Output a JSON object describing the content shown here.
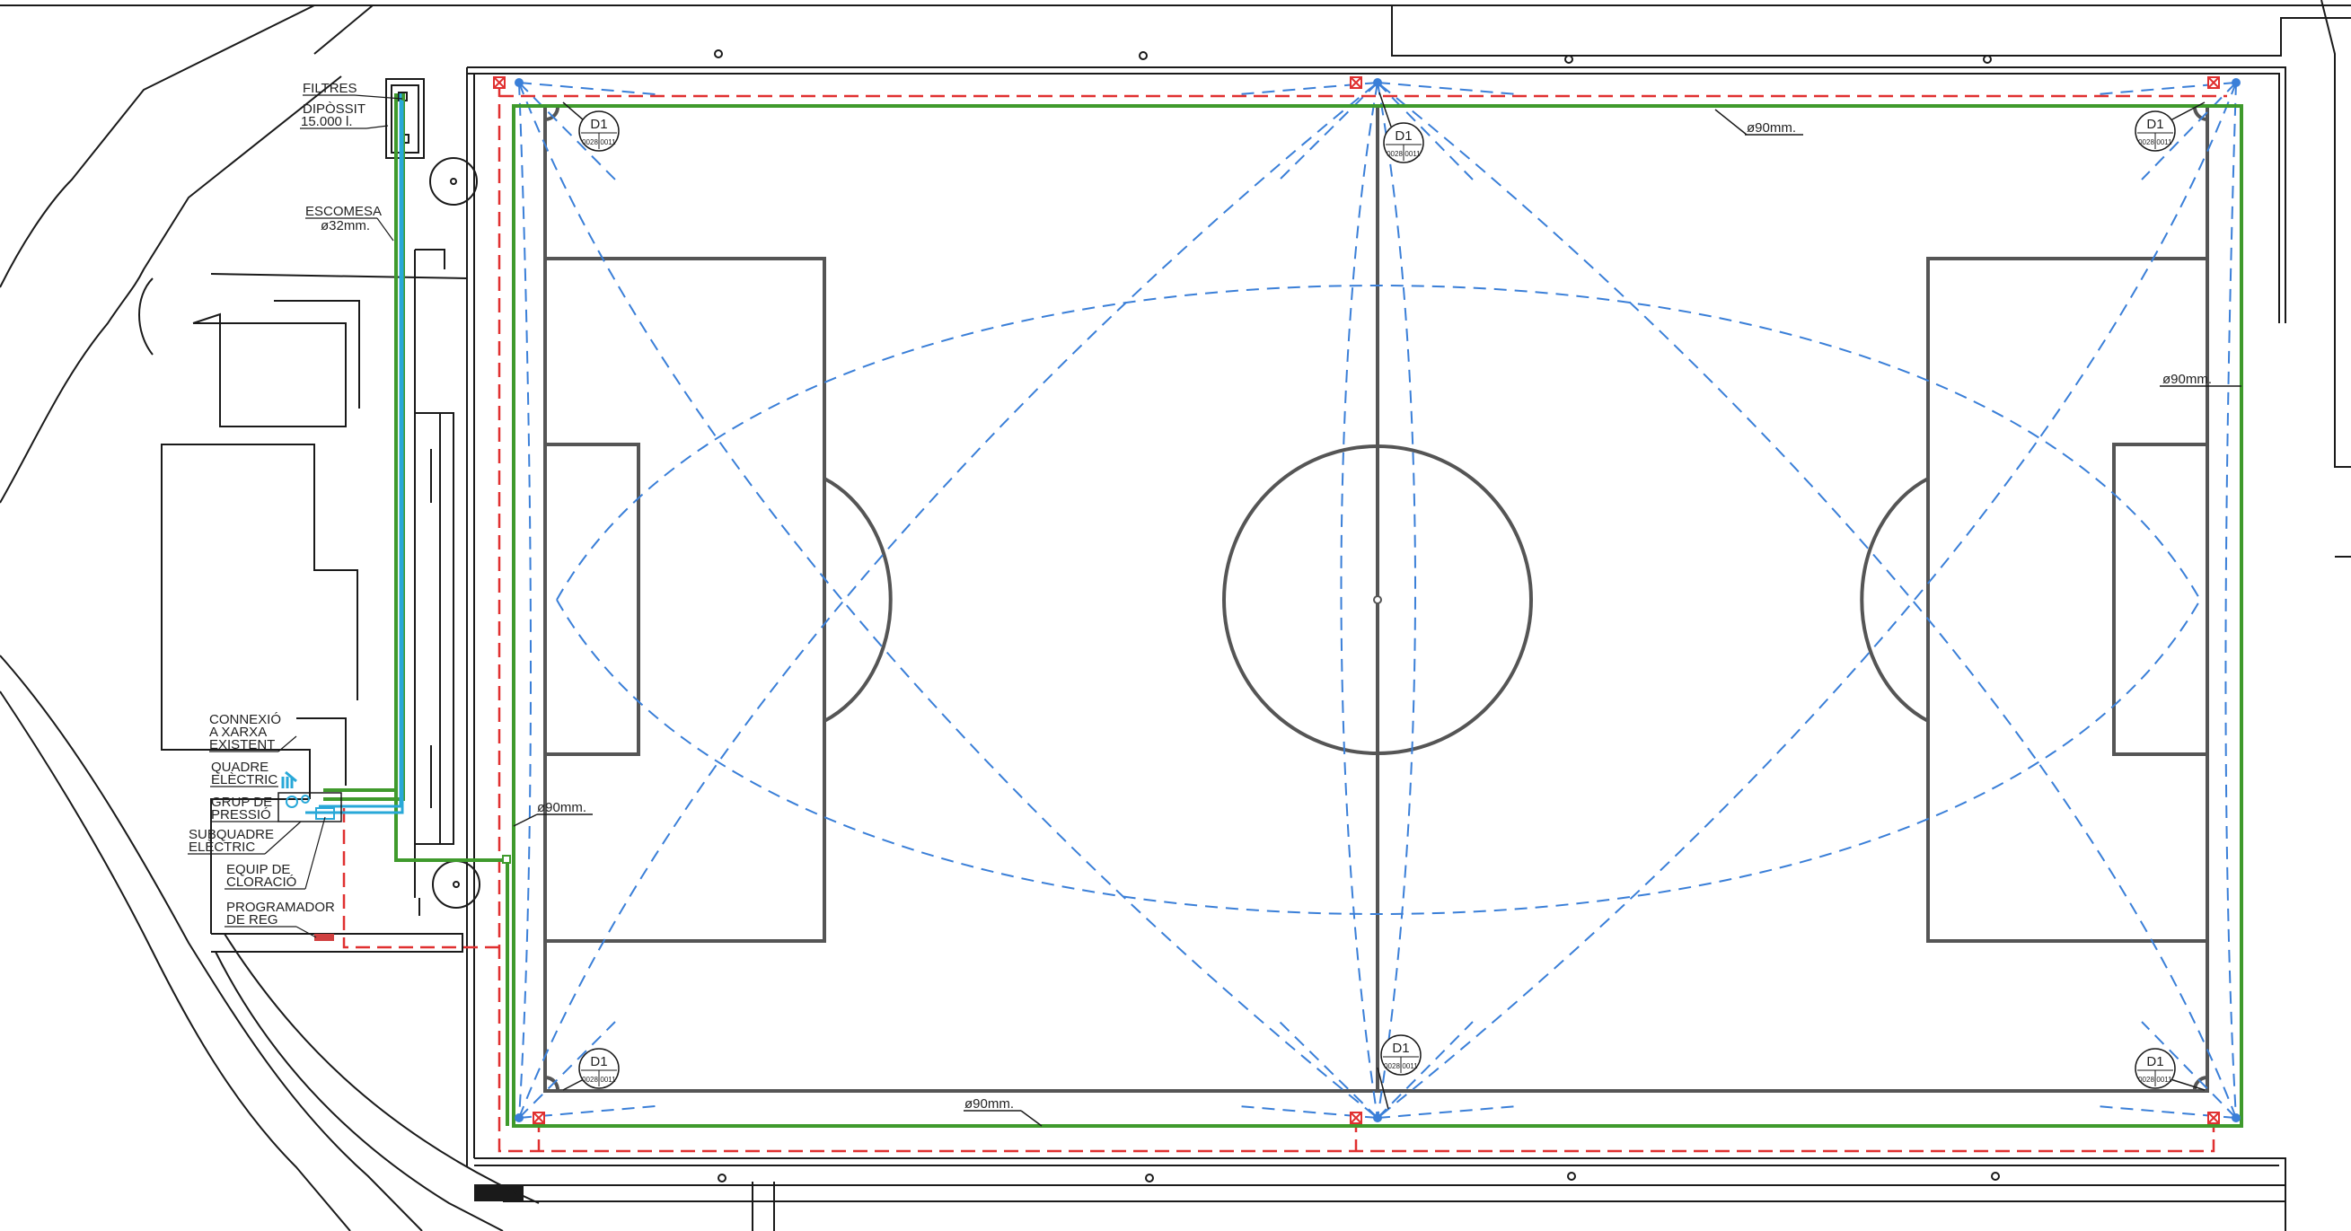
{
  "drawing": {
    "labels": {
      "filtres": "FILTRES",
      "diposit_1": "DIPÒSSIT",
      "diposit_2": "15.000 l.",
      "escomesa_1": "ESCOMESA",
      "escomesa_2": "ø32mm.",
      "connexio_1": "CONNEXIÓ",
      "connexio_2": "A XARXA",
      "connexio_3": "EXISTENT",
      "quadre_1": "QUADRE",
      "quadre_2": "ELÈCTRIC",
      "grup_1": "GRUP DE",
      "grup_2": "PRESSIÓ",
      "subquadre_1": "SUBQUADRE",
      "subquadre_2": "ELÈCTRIC",
      "equip_1": "EQUIP DE",
      "equip_2": "CLORACIÓ",
      "programador_1": "PROGRAMADOR",
      "programador_2": "DE REG"
    },
    "pipe_label": "ø90mm.",
    "sprinkler_tag": {
      "name": "D1",
      "left": "0028",
      "right": "0011"
    },
    "colors": {
      "main_pipe": "#3f9a2c",
      "drip_line": "#e03030",
      "spray_pattern": "#3a7fd8",
      "supply": "#28a8d8",
      "field_lines": "#555555"
    }
  }
}
